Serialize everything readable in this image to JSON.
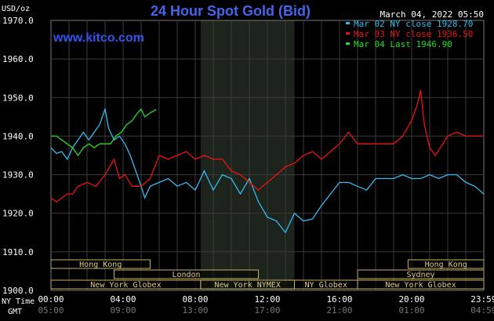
{
  "header": {
    "title": "24 Hour Spot Gold (Bid)",
    "unit": "USD/oz",
    "date": "March 04, 2022 05:50",
    "watermark": "www.kitco.com"
  },
  "chart_data": {
    "type": "line",
    "title": "24 Hour Spot Gold (Bid)",
    "ylabel": "USD/oz",
    "ylim": [
      1900,
      1970
    ],
    "yticks": [
      "1970.0",
      "1960.0",
      "1950.0",
      "1940.0",
      "1930.0",
      "1920.0",
      "1910.0",
      "1900.0"
    ],
    "xlim": [
      0,
      24
    ],
    "xticks_ny": [
      "00:00",
      "04:00",
      "08:00",
      "12:00",
      "16:00",
      "20:00",
      "23:59"
    ],
    "xticks_gmt": [
      "05:00",
      "09:00",
      "13:00",
      "17:00",
      "21:00",
      "01:00",
      "04:59"
    ],
    "x_axis_labels": {
      "ny": "NY Time",
      "gmt": "GMT"
    },
    "x_unit": "hours (NY time)",
    "shaded_region": [
      8.3,
      13.5
    ],
    "grid": true,
    "legend_position": "top-right",
    "legend": [
      {
        "label": "Mar 02 NY close 1928.70",
        "color": "#33bbee"
      },
      {
        "label": "Mar 03 NY close 1936.50",
        "color": "#ee1111"
      },
      {
        "label": "Mar 04 Last 1946.90",
        "color": "#22dd22"
      }
    ],
    "series": [
      {
        "name": "Mar 02",
        "color": "#33bbee",
        "points": [
          [
            0,
            1937
          ],
          [
            0.3,
            1935.5
          ],
          [
            0.6,
            1936
          ],
          [
            0.9,
            1934
          ],
          [
            1.2,
            1937
          ],
          [
            1.5,
            1939
          ],
          [
            1.8,
            1941
          ],
          [
            2.1,
            1939
          ],
          [
            2.4,
            1941
          ],
          [
            2.7,
            1943
          ],
          [
            3.0,
            1947
          ],
          [
            3.2,
            1942
          ],
          [
            3.5,
            1939
          ],
          [
            3.8,
            1940
          ],
          [
            4.1,
            1938
          ],
          [
            4.4,
            1935
          ],
          [
            4.7,
            1931
          ],
          [
            5.0,
            1927
          ],
          [
            5.2,
            1924
          ],
          [
            5.5,
            1927
          ],
          [
            6.0,
            1928
          ],
          [
            6.5,
            1929
          ],
          [
            7.0,
            1927
          ],
          [
            7.5,
            1928
          ],
          [
            8.0,
            1926
          ],
          [
            8.5,
            1931
          ],
          [
            9.0,
            1926
          ],
          [
            9.5,
            1930
          ],
          [
            10.0,
            1929
          ],
          [
            10.5,
            1925
          ],
          [
            11.0,
            1929
          ],
          [
            11.5,
            1923
          ],
          [
            12.0,
            1919
          ],
          [
            12.5,
            1918
          ],
          [
            13.0,
            1915
          ],
          [
            13.5,
            1920
          ],
          [
            14.0,
            1918
          ],
          [
            14.5,
            1918.5
          ],
          [
            15.0,
            1922
          ],
          [
            15.5,
            1925
          ],
          [
            16.0,
            1928
          ],
          [
            16.5,
            1928
          ],
          [
            17.0,
            1927
          ],
          [
            17.5,
            1926
          ],
          [
            18.0,
            1929
          ],
          [
            18.5,
            1929
          ],
          [
            19.0,
            1929
          ],
          [
            19.5,
            1930
          ],
          [
            20.0,
            1929
          ],
          [
            20.5,
            1929
          ],
          [
            21.0,
            1930
          ],
          [
            21.5,
            1929
          ],
          [
            22.0,
            1930
          ],
          [
            22.5,
            1930
          ],
          [
            23.0,
            1928
          ],
          [
            23.5,
            1927
          ],
          [
            23.99,
            1925
          ]
        ]
      },
      {
        "name": "Mar 03",
        "color": "#ee1111",
        "points": [
          [
            0,
            1924
          ],
          [
            0.3,
            1923
          ],
          [
            0.6,
            1924
          ],
          [
            0.9,
            1925
          ],
          [
            1.2,
            1925
          ],
          [
            1.5,
            1927
          ],
          [
            2.0,
            1928
          ],
          [
            2.5,
            1927
          ],
          [
            3.0,
            1930
          ],
          [
            3.5,
            1934
          ],
          [
            3.8,
            1929
          ],
          [
            4.1,
            1930
          ],
          [
            4.5,
            1927
          ],
          [
            5.0,
            1927
          ],
          [
            5.5,
            1929
          ],
          [
            6.0,
            1935
          ],
          [
            6.5,
            1934
          ],
          [
            7.0,
            1935
          ],
          [
            7.5,
            1936
          ],
          [
            8.0,
            1934
          ],
          [
            8.5,
            1935
          ],
          [
            9.0,
            1934
          ],
          [
            9.5,
            1934
          ],
          [
            10.0,
            1931
          ],
          [
            10.5,
            1930
          ],
          [
            11.0,
            1928
          ],
          [
            11.5,
            1926
          ],
          [
            12.0,
            1928
          ],
          [
            12.5,
            1930
          ],
          [
            13.0,
            1932
          ],
          [
            13.5,
            1933
          ],
          [
            14.0,
            1935
          ],
          [
            14.5,
            1936
          ],
          [
            15.0,
            1934
          ],
          [
            15.5,
            1936
          ],
          [
            16.0,
            1938
          ],
          [
            16.5,
            1941
          ],
          [
            17.0,
            1938
          ],
          [
            17.5,
            1938
          ],
          [
            18.0,
            1938
          ],
          [
            18.5,
            1938
          ],
          [
            19.0,
            1938
          ],
          [
            19.5,
            1940
          ],
          [
            20.0,
            1944
          ],
          [
            20.3,
            1948
          ],
          [
            20.5,
            1952
          ],
          [
            20.7,
            1943
          ],
          [
            21.0,
            1937
          ],
          [
            21.3,
            1935
          ],
          [
            21.6,
            1937
          ],
          [
            22.0,
            1940
          ],
          [
            22.5,
            1941
          ],
          [
            23.0,
            1940
          ],
          [
            23.5,
            1940
          ],
          [
            23.99,
            1940
          ]
        ]
      },
      {
        "name": "Mar 04",
        "color": "#22dd22",
        "points": [
          [
            0,
            1940
          ],
          [
            0.3,
            1940
          ],
          [
            0.6,
            1939
          ],
          [
            0.9,
            1938
          ],
          [
            1.2,
            1937
          ],
          [
            1.5,
            1935
          ],
          [
            1.8,
            1937
          ],
          [
            2.1,
            1938
          ],
          [
            2.4,
            1937
          ],
          [
            2.7,
            1938
          ],
          [
            3.0,
            1938
          ],
          [
            3.3,
            1938
          ],
          [
            3.6,
            1940
          ],
          [
            3.9,
            1941
          ],
          [
            4.2,
            1943
          ],
          [
            4.5,
            1944
          ],
          [
            4.8,
            1946
          ],
          [
            5.0,
            1947
          ],
          [
            5.2,
            1945
          ],
          [
            5.5,
            1946
          ],
          [
            5.83,
            1946.9
          ]
        ]
      }
    ]
  },
  "sessions": [
    {
      "label": "Hong Kong",
      "start": 0,
      "end": 5.5,
      "row": 0
    },
    {
      "label": "Hong Kong",
      "start": 19.8,
      "end": 24,
      "row": 0
    },
    {
      "label": "London",
      "start": 3.5,
      "end": 11.5,
      "row": 1
    },
    {
      "label": "Sydney",
      "start": 17.0,
      "end": 24,
      "row": 1
    },
    {
      "label": "New York Globex",
      "start": 0,
      "end": 8.3,
      "row": 2
    },
    {
      "label": "New York NYMEX",
      "start": 8.3,
      "end": 13.5,
      "row": 2
    },
    {
      "label": "NY Globex",
      "start": 13.5,
      "end": 17.0,
      "row": 2
    },
    {
      "label": "New York Globex",
      "start": 17.0,
      "end": 24,
      "row": 2
    }
  ]
}
